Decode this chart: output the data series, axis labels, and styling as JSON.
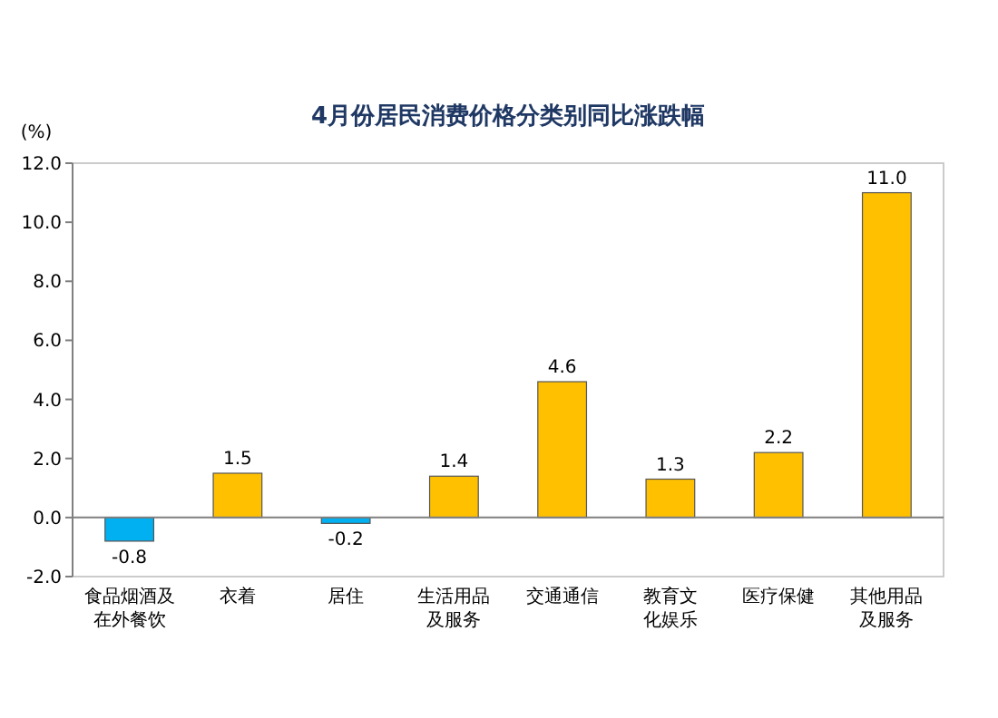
{
  "chart_data": {
    "type": "bar",
    "title": "4月份居民消费价格分类别同比涨跌幅",
    "ylabel": "(%)",
    "categories": [
      "食品烟酒及在外餐饮",
      "衣着",
      "居住",
      "生活用品及服务",
      "交通通信",
      "教育文化娱乐",
      "医疗保健",
      "其他用品及服务"
    ],
    "values": [
      -0.8,
      1.5,
      -0.2,
      1.4,
      4.6,
      1.3,
      2.2,
      11.0
    ],
    "colors": [
      "#00b0f0",
      "#ffc000",
      "#00b0f0",
      "#ffc000",
      "#ffc000",
      "#ffc000",
      "#ffc000",
      "#ffc000"
    ],
    "value_labels": [
      "-0.8",
      "1.5",
      "-0.2",
      "1.4",
      "4.6",
      "1.3",
      "2.2",
      "11.0"
    ],
    "ylim": [
      -2,
      12
    ],
    "yticks": [
      {
        "value": -2,
        "label": "-2.0"
      },
      {
        "value": 0,
        "label": "0.0"
      },
      {
        "value": 2,
        "label": "2.0"
      },
      {
        "value": 4,
        "label": "4.0"
      },
      {
        "value": 6,
        "label": "6.0"
      },
      {
        "value": 8,
        "label": "8.0"
      },
      {
        "value": 10,
        "label": "10.0"
      },
      {
        "value": 12,
        "label": "12.0"
      }
    ]
  }
}
